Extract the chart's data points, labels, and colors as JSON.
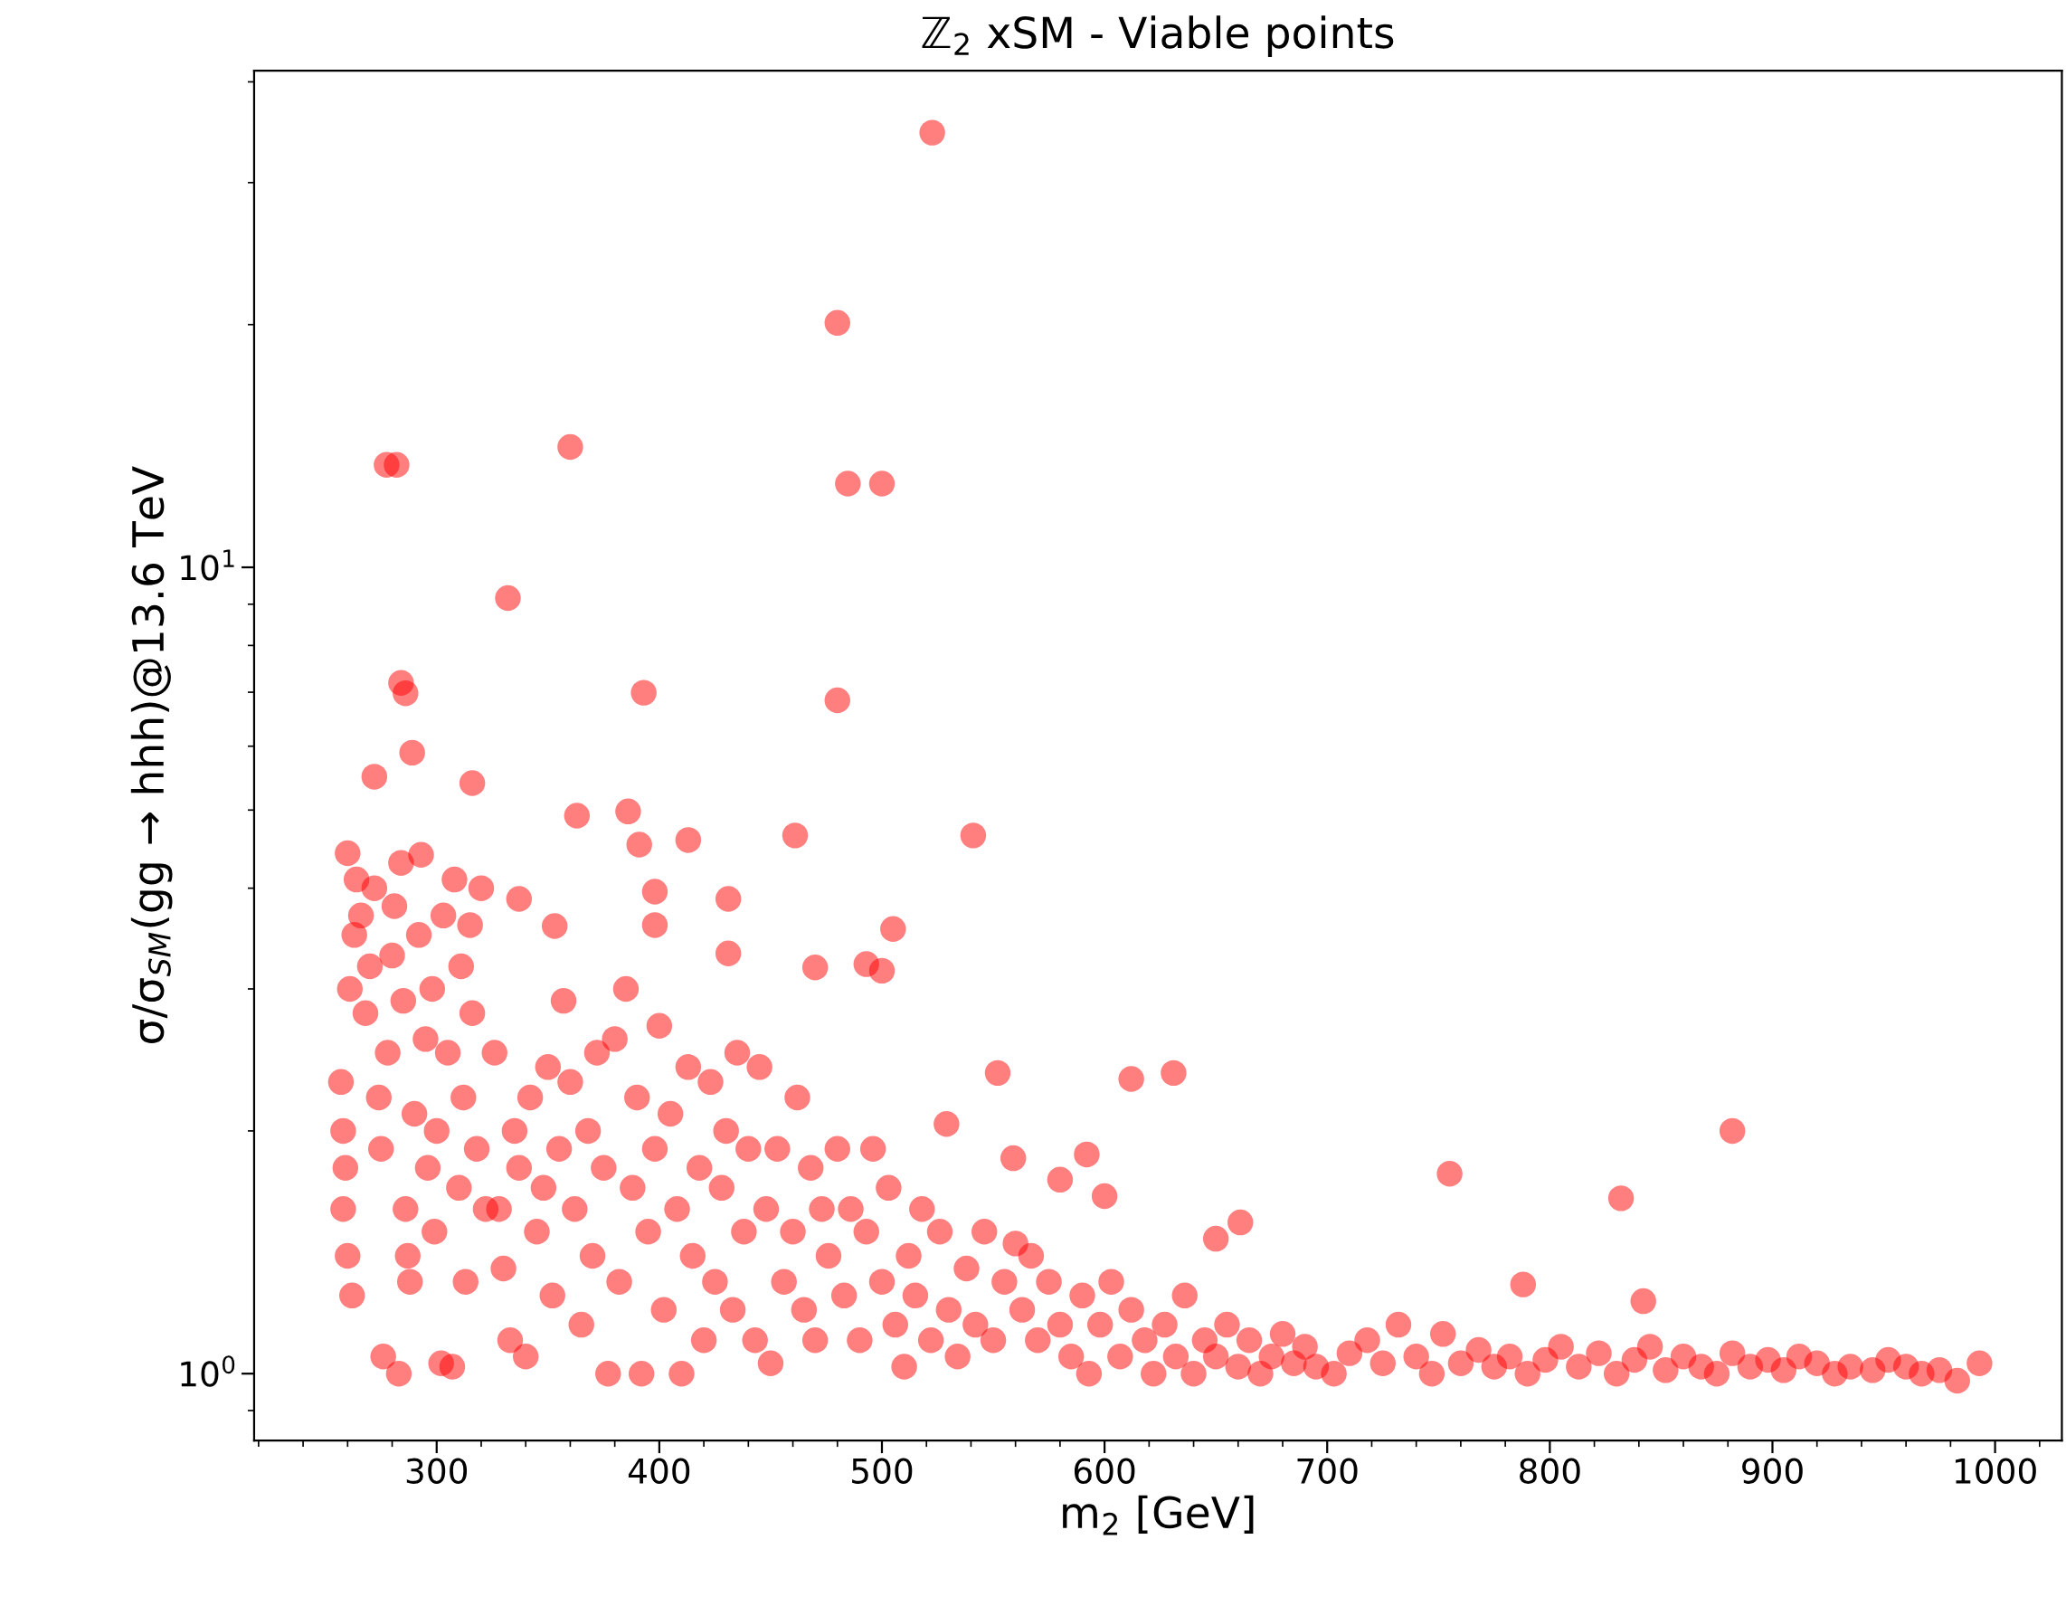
{
  "chart_data": {
    "type": "scatter",
    "title": "ℤ$_{2}$ xSM - Viable points",
    "xlabel": "m$_{2}$ [GeV]",
    "ylabel": "σ/σ$_{SM}$(gg → hhh)@13.6 TeV",
    "log": "y",
    "marker": "circle",
    "grid": false,
    "xlim": [
      218,
      1030
    ],
    "ylim": [
      0.826,
      41.3
    ],
    "xticks": [
      300,
      400,
      500,
      600,
      700,
      800,
      900,
      1000
    ],
    "yticks": [
      {
        "value": 1,
        "label": "10$^{0}$"
      },
      {
        "value": 10,
        "label": "10$^{1}$"
      }
    ],
    "series": [
      {
        "color": "#ff0000",
        "x": [
          522.6,
          480,
          277.5,
          282,
          360,
          484.7,
          500,
          332,
          284,
          286,
          393,
          480,
          289,
          316,
          272,
          363,
          386,
          461,
          541,
          413,
          391,
          260,
          398,
          431,
          337,
          505,
          353,
          398,
          470,
          493,
          500,
          431,
          832,
          755,
          882,
          788,
          842,
          612,
          631,
          552,
          529,
          559,
          592,
          580,
          600,
          650,
          661,
          257,
          258,
          259,
          258,
          260,
          262,
          261,
          263,
          264,
          266,
          268,
          270,
          272,
          274,
          275,
          276,
          278,
          280,
          281,
          283,
          284,
          285,
          286,
          287,
          288,
          290,
          292,
          293,
          295,
          296,
          298,
          299,
          300,
          302,
          303,
          305,
          307,
          308,
          310,
          311,
          312,
          313,
          315,
          316,
          318,
          320,
          322,
          326,
          328,
          330,
          333,
          335,
          337,
          340,
          342,
          345,
          348,
          350,
          352,
          355,
          357,
          360,
          362,
          365,
          368,
          370,
          372,
          375,
          377,
          380,
          382,
          385,
          388,
          390,
          392,
          395,
          398,
          400,
          402,
          405,
          408,
          410,
          413,
          415,
          418,
          420,
          423,
          425,
          428,
          430,
          433,
          435,
          438,
          440,
          443,
          445,
          448,
          450,
          453,
          456,
          460,
          462,
          465,
          468,
          470,
          473,
          476,
          480,
          483,
          486,
          490,
          493,
          496,
          500,
          503,
          506,
          510,
          512,
          515,
          518,
          522,
          526,
          530,
          534,
          538,
          542,
          546,
          550,
          555,
          560,
          563,
          567,
          570,
          575,
          580,
          585,
          590,
          593,
          598,
          603,
          607,
          612,
          618,
          622,
          627,
          632,
          636,
          640,
          645,
          650,
          655,
          660,
          665,
          670,
          675,
          680,
          685,
          690,
          695,
          703,
          710,
          718,
          725,
          732,
          740,
          747,
          752,
          760,
          768,
          775,
          782,
          790,
          798,
          805,
          813,
          822,
          830,
          838,
          845,
          852,
          860,
          868,
          875,
          882,
          890,
          898,
          905,
          912,
          920,
          928,
          935,
          945,
          952,
          960,
          967,
          975,
          983,
          993
        ],
        "values": [
          34.6,
          20.1,
          13.4,
          13.4,
          14.1,
          12.7,
          12.7,
          9.16,
          7.19,
          6.98,
          6.99,
          6.84,
          5.89,
          5.4,
          5.5,
          4.92,
          4.98,
          4.65,
          4.65,
          4.59,
          4.53,
          4.42,
          3.96,
          3.88,
          3.88,
          3.56,
          3.59,
          3.6,
          3.19,
          3.22,
          3.16,
          3.32,
          1.65,
          1.77,
          2.0,
          1.29,
          1.23,
          2.32,
          2.36,
          2.36,
          2.04,
          1.85,
          1.87,
          1.74,
          1.66,
          1.47,
          1.54,
          2.3,
          2.0,
          1.8,
          1.6,
          1.4,
          1.25,
          3.0,
          3.5,
          4.1,
          3.7,
          2.8,
          3.2,
          4.0,
          2.2,
          1.9,
          1.05,
          2.5,
          3.3,
          3.8,
          1.0,
          4.3,
          2.9,
          1.6,
          1.4,
          1.3,
          2.1,
          3.5,
          4.4,
          2.6,
          1.8,
          3.0,
          1.5,
          2.0,
          1.03,
          3.7,
          2.5,
          1.02,
          4.1,
          1.7,
          3.2,
          2.2,
          1.3,
          3.6,
          2.8,
          1.9,
          4.0,
          1.6,
          2.5,
          1.6,
          1.35,
          1.1,
          2.0,
          1.8,
          1.05,
          2.2,
          1.5,
          1.7,
          2.4,
          1.25,
          1.9,
          2.9,
          2.3,
          1.6,
          1.15,
          2.0,
          1.4,
          2.5,
          1.8,
          1.0,
          2.6,
          1.3,
          3.0,
          1.7,
          2.2,
          1.0,
          1.5,
          1.9,
          2.7,
          1.2,
          2.1,
          1.6,
          1.0,
          2.4,
          1.4,
          1.8,
          1.1,
          2.3,
          1.3,
          1.7,
          2.0,
          1.2,
          2.5,
          1.5,
          1.9,
          1.1,
          2.4,
          1.6,
          1.03,
          1.9,
          1.3,
          1.5,
          2.2,
          1.2,
          1.8,
          1.1,
          1.6,
          1.4,
          1.9,
          1.25,
          1.6,
          1.1,
          1.5,
          1.9,
          1.3,
          1.7,
          1.15,
          1.02,
          1.4,
          1.25,
          1.6,
          1.1,
          1.5,
          1.2,
          1.05,
          1.35,
          1.15,
          1.5,
          1.1,
          1.3,
          1.45,
          1.2,
          1.4,
          1.1,
          1.3,
          1.15,
          1.05,
          1.25,
          1.0,
          1.15,
          1.3,
          1.05,
          1.2,
          1.1,
          1.0,
          1.15,
          1.05,
          1.25,
          1.0,
          1.1,
          1.05,
          1.15,
          1.02,
          1.1,
          1.0,
          1.05,
          1.12,
          1.03,
          1.08,
          1.02,
          1.0,
          1.06,
          1.1,
          1.03,
          1.15,
          1.05,
          1.0,
          1.12,
          1.03,
          1.07,
          1.02,
          1.05,
          1.0,
          1.04,
          1.08,
          1.02,
          1.06,
          1.0,
          1.04,
          1.08,
          1.01,
          1.05,
          1.02,
          1.0,
          1.06,
          1.02,
          1.04,
          1.01,
          1.05,
          1.03,
          1.0,
          1.02,
          1.01,
          1.04,
          1.02,
          1.0,
          1.01,
          0.98,
          1.03
        ]
      }
    ]
  }
}
